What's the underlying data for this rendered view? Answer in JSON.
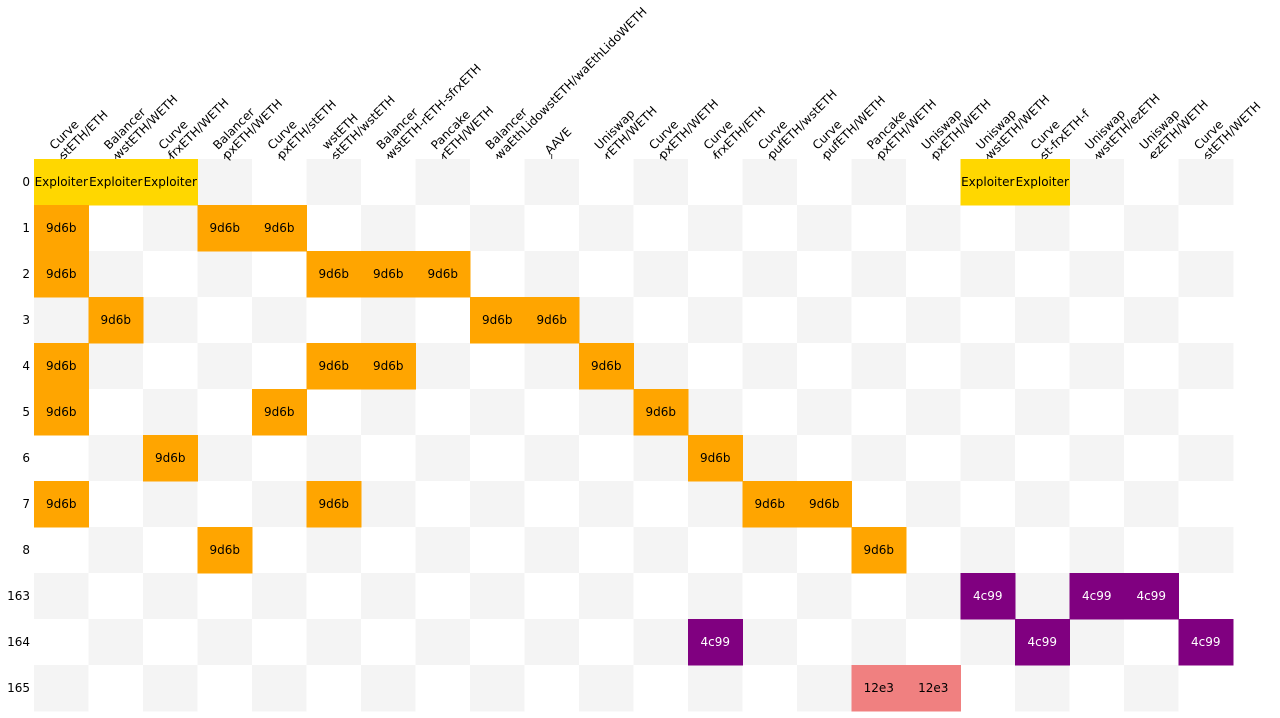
{
  "chart_data": {
    "type": "heatmap",
    "title": "",
    "xlabel": "",
    "ylabel": "",
    "columns": [
      [
        "Curve",
        "stETH/ETH"
      ],
      [
        "Balancer",
        "wstETH/WETH"
      ],
      [
        "Curve",
        "frxETH/WETH"
      ],
      [
        "Balancer",
        "pxETH/WETH"
      ],
      [
        "Curve",
        "pxETH/stETH"
      ],
      [
        "wstETH",
        "stETH/wstETH"
      ],
      [
        "Balancer",
        "wstETH-rETH-sfrxETH"
      ],
      [
        "Pancake",
        "rETH/WETH"
      ],
      [
        "Balancer",
        "waEthLidowstETH/waEthLidoWETH"
      ],
      [
        "AAVE"
      ],
      [
        "Uniswap",
        "rETH/WETH"
      ],
      [
        "Curve",
        "pxETH/WETH"
      ],
      [
        "Curve",
        "frxETH/ETH"
      ],
      [
        "Curve",
        "pufETH/wstETH"
      ],
      [
        "Curve",
        "pufETH/WETH"
      ],
      [
        "Pancake",
        "pxETH/WETH"
      ],
      [
        "Uniswap",
        "pxETH/WETH"
      ],
      [
        "Uniswap",
        "wstETH/WETH"
      ],
      [
        "Curve",
        "st-frxETH-f"
      ],
      [
        "Uniswap",
        "wstETH/ezETH"
      ],
      [
        "Uniswap",
        "ezETH/WETH"
      ],
      [
        "Curve",
        "stETH/WETH"
      ]
    ],
    "rows": [
      "0",
      "1",
      "2",
      "3",
      "4",
      "5",
      "6",
      "7",
      "8",
      "163",
      "164",
      "165"
    ],
    "cells": [
      {
        "row": 0,
        "col": 0,
        "label": "Exploiter",
        "group": "exploiter"
      },
      {
        "row": 0,
        "col": 1,
        "label": "Exploiter",
        "group": "exploiter"
      },
      {
        "row": 0,
        "col": 2,
        "label": "Exploiter",
        "group": "exploiter"
      },
      {
        "row": 0,
        "col": 17,
        "label": "Exploiter",
        "group": "exploiter"
      },
      {
        "row": 0,
        "col": 18,
        "label": "Exploiter",
        "group": "exploiter"
      },
      {
        "row": 1,
        "col": 0,
        "label": "9d6b",
        "group": "9d6b"
      },
      {
        "row": 1,
        "col": 3,
        "label": "9d6b",
        "group": "9d6b"
      },
      {
        "row": 1,
        "col": 4,
        "label": "9d6b",
        "group": "9d6b"
      },
      {
        "row": 2,
        "col": 0,
        "label": "9d6b",
        "group": "9d6b"
      },
      {
        "row": 2,
        "col": 5,
        "label": "9d6b",
        "group": "9d6b"
      },
      {
        "row": 2,
        "col": 6,
        "label": "9d6b",
        "group": "9d6b"
      },
      {
        "row": 2,
        "col": 7,
        "label": "9d6b",
        "group": "9d6b"
      },
      {
        "row": 3,
        "col": 1,
        "label": "9d6b",
        "group": "9d6b"
      },
      {
        "row": 3,
        "col": 8,
        "label": "9d6b",
        "group": "9d6b"
      },
      {
        "row": 3,
        "col": 9,
        "label": "9d6b",
        "group": "9d6b"
      },
      {
        "row": 4,
        "col": 0,
        "label": "9d6b",
        "group": "9d6b"
      },
      {
        "row": 4,
        "col": 5,
        "label": "9d6b",
        "group": "9d6b"
      },
      {
        "row": 4,
        "col": 6,
        "label": "9d6b",
        "group": "9d6b"
      },
      {
        "row": 4,
        "col": 10,
        "label": "9d6b",
        "group": "9d6b"
      },
      {
        "row": 5,
        "col": 0,
        "label": "9d6b",
        "group": "9d6b"
      },
      {
        "row": 5,
        "col": 4,
        "label": "9d6b",
        "group": "9d6b"
      },
      {
        "row": 5,
        "col": 11,
        "label": "9d6b",
        "group": "9d6b"
      },
      {
        "row": 6,
        "col": 2,
        "label": "9d6b",
        "group": "9d6b"
      },
      {
        "row": 6,
        "col": 12,
        "label": "9d6b",
        "group": "9d6b"
      },
      {
        "row": 7,
        "col": 0,
        "label": "9d6b",
        "group": "9d6b"
      },
      {
        "row": 7,
        "col": 5,
        "label": "9d6b",
        "group": "9d6b"
      },
      {
        "row": 7,
        "col": 13,
        "label": "9d6b",
        "group": "9d6b"
      },
      {
        "row": 7,
        "col": 14,
        "label": "9d6b",
        "group": "9d6b"
      },
      {
        "row": 8,
        "col": 3,
        "label": "9d6b",
        "group": "9d6b"
      },
      {
        "row": 8,
        "col": 15,
        "label": "9d6b",
        "group": "9d6b"
      },
      {
        "row": 9,
        "col": 17,
        "label": "4c99",
        "group": "4c99"
      },
      {
        "row": 9,
        "col": 19,
        "label": "4c99",
        "group": "4c99"
      },
      {
        "row": 9,
        "col": 20,
        "label": "4c99",
        "group": "4c99"
      },
      {
        "row": 10,
        "col": 12,
        "label": "4c99",
        "group": "4c99"
      },
      {
        "row": 10,
        "col": 18,
        "label": "4c99",
        "group": "4c99"
      },
      {
        "row": 10,
        "col": 21,
        "label": "4c99",
        "group": "4c99"
      },
      {
        "row": 11,
        "col": 15,
        "label": "12e3",
        "group": "12e3"
      },
      {
        "row": 11,
        "col": 16,
        "label": "12e3",
        "group": "12e3"
      }
    ],
    "colors": {
      "exploiter": "#ffd700",
      "9d6b": "#ffa500",
      "4c99": "#800080",
      "12e3": "#f08080",
      "checker_light": "#f4f4f4",
      "checker_white": "#ffffff"
    },
    "label_colors": {
      "exploiter": "#000000",
      "9d6b": "#000000",
      "4c99": "#ffffff",
      "12e3": "#000000"
    },
    "grid": false,
    "legend": "none"
  }
}
